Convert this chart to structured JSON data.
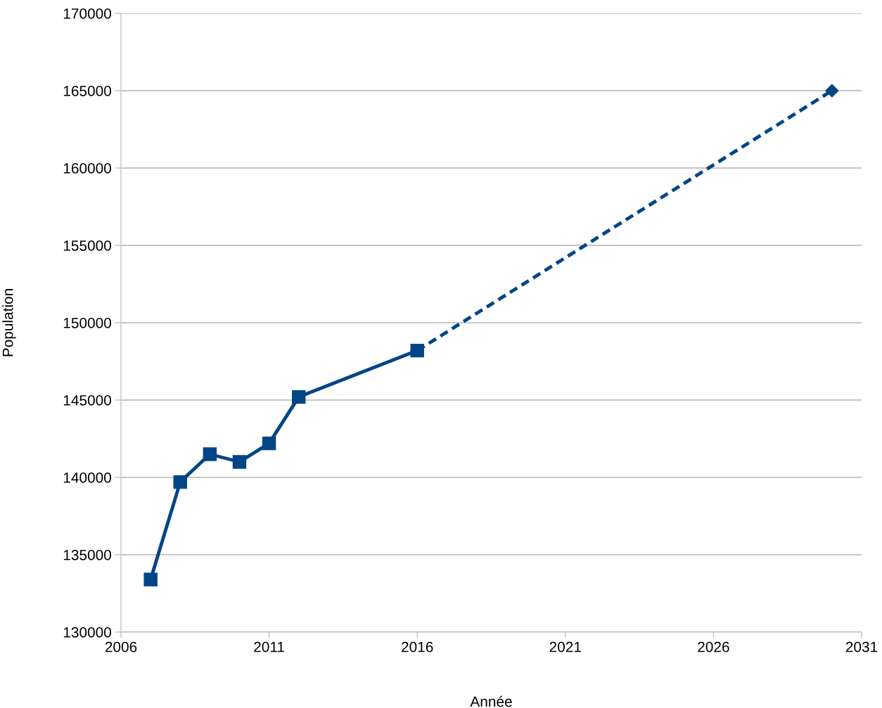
{
  "chart_data": {
    "type": "line",
    "xlabel": "Année",
    "ylabel": "Population",
    "series": [
      {
        "color": "#004586",
        "x": [
          2016,
          2030
        ],
        "values": [
          148200,
          165000
        ],
        "marker": "diamond",
        "line_style": "dashed"
      },
      {
        "color": "#004586",
        "x": [
          2007,
          2008,
          2009,
          2010,
          2011,
          2012,
          2016
        ],
        "values": [
          133400,
          139700,
          141500,
          141000,
          142200,
          145200,
          148200
        ],
        "marker": "square",
        "line_style": "solid"
      }
    ],
    "xlim": [
      2006,
      2031
    ],
    "xticks": [
      2006,
      2011,
      2016,
      2021,
      2026,
      2031
    ],
    "ylim": [
      130000,
      170000
    ],
    "yticks": [
      130000,
      135000,
      140000,
      145000,
      150000,
      155000,
      160000,
      165000,
      170000
    ],
    "grid": "y",
    "legend": false
  }
}
